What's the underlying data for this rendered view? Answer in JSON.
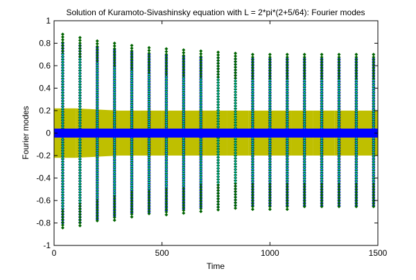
{
  "chart_data": {
    "type": "scatter",
    "title": "Solution of Kuramoto-Sivashinsky equation with L = 2*pi*(2+5/64): Fourier modes",
    "xlabel": "Time",
    "ylabel": "Fourier modes",
    "xlim": [
      0,
      1500
    ],
    "ylim": [
      -1,
      1
    ],
    "grid": false,
    "legend": false,
    "x_ticks": [
      0,
      500,
      1000,
      1500
    ],
    "x_tick_labels": [
      "0",
      "500",
      "1000",
      "1500"
    ],
    "y_ticks": [
      -1,
      -0.8,
      -0.6,
      -0.4,
      -0.2,
      0,
      0.2,
      0.4,
      0.6,
      0.8,
      1
    ],
    "y_tick_labels": [
      "-1",
      "-0.8",
      "-0.6",
      "-0.4",
      "-0.2",
      "0",
      "0.2",
      "0.4",
      "0.6",
      "0.8",
      "1"
    ],
    "series": [
      {
        "color": "#006400",
        "marker": "diamond",
        "x": [
          40,
          120,
          200,
          280,
          360,
          440,
          520,
          600,
          680,
          760,
          840,
          920,
          1000,
          1080,
          1160,
          1240,
          1320,
          1400,
          1480
        ],
        "y_max": [
          0.88,
          0.85,
          0.82,
          0.8,
          0.78,
          0.76,
          0.75,
          0.74,
          0.73,
          0.72,
          0.71,
          0.7,
          0.7,
          0.7,
          0.7,
          0.7,
          0.7,
          0.7,
          0.7
        ],
        "y_min": [
          -0.86,
          -0.83,
          -0.8,
          -0.78,
          -0.76,
          -0.74,
          -0.73,
          -0.72,
          -0.71,
          -0.7,
          -0.69,
          -0.68,
          -0.68,
          -0.68,
          -0.67,
          -0.67,
          -0.67,
          -0.67,
          -0.67
        ]
      },
      {
        "color": "#0000ff",
        "marker": "diamond",
        "x": [
          40,
          120,
          200,
          280,
          360,
          440,
          520,
          600,
          680,
          760,
          840,
          920,
          1000,
          1080,
          1160,
          1240,
          1320,
          1400,
          1480
        ],
        "y_max": [
          0.8,
          0.78,
          0.76,
          0.74,
          0.72,
          0.7,
          0.69,
          0.68,
          0.67,
          0.67,
          0.66,
          0.66,
          0.66,
          0.66,
          0.66,
          0.66,
          0.66,
          0.66,
          0.66
        ],
        "y_min": [
          -0.82,
          -0.8,
          -0.77,
          -0.75,
          -0.73,
          -0.71,
          -0.7,
          -0.69,
          -0.68,
          -0.67,
          -0.66,
          -0.66,
          -0.66,
          -0.66,
          -0.66,
          -0.66,
          -0.66,
          -0.66,
          -0.66
        ]
      },
      {
        "color": "#ff0000",
        "marker": "point",
        "x": [
          40,
          120,
          200,
          280,
          360,
          440,
          520,
          600,
          680,
          760,
          840,
          920,
          1000,
          1080,
          1160,
          1240,
          1320,
          1400,
          1480
        ],
        "y_max": [
          0.62,
          0.6,
          0.58,
          0.56,
          0.55,
          0.54,
          0.53,
          0.52,
          0.52,
          0.52,
          0.52,
          0.52,
          0.52,
          0.52,
          0.52,
          0.52,
          0.52,
          0.52,
          0.52
        ],
        "y_min": [
          -0.66,
          -0.63,
          -0.6,
          -0.58,
          -0.56,
          -0.54,
          -0.53,
          -0.52,
          -0.52,
          -0.52,
          -0.52,
          -0.52,
          -0.52,
          -0.52,
          -0.52,
          -0.52,
          -0.52,
          -0.52,
          -0.52
        ]
      },
      {
        "color": "#bf00bf",
        "marker": "point",
        "x": [
          40,
          120,
          200,
          280,
          360,
          440,
          520,
          600,
          680,
          760,
          840,
          920,
          1000,
          1080,
          1160,
          1240,
          1320,
          1400,
          1480
        ],
        "y_max": [
          0.35,
          0.33,
          0.32,
          0.3,
          0.29,
          0.28,
          0.27,
          0.27,
          0.26,
          0.26,
          0.26,
          0.26,
          0.26,
          0.26,
          0.26,
          0.26,
          0.26,
          0.26,
          0.26
        ],
        "y_min": [
          -0.35,
          -0.33,
          -0.32,
          -0.3,
          -0.29,
          -0.28,
          -0.27,
          -0.27,
          -0.26,
          -0.26,
          -0.26,
          -0.26,
          -0.26,
          -0.26,
          -0.26,
          -0.26,
          -0.26,
          -0.26,
          -0.26
        ]
      },
      {
        "color": "#00bfbf",
        "marker": "point",
        "x": [
          40,
          120,
          200,
          280,
          360,
          440,
          520,
          600,
          680,
          760,
          840,
          920,
          1000,
          1080,
          1160,
          1240,
          1320,
          1400,
          1480
        ],
        "y_max": [
          0.7,
          0.66,
          0.62,
          0.58,
          0.55,
          0.52,
          0.5,
          0.49,
          0.48,
          0.48,
          0.47,
          0.47,
          0.47,
          0.47,
          0.47,
          0.47,
          0.47,
          0.47,
          0.47
        ],
        "y_min": [
          -0.68,
          -0.62,
          -0.58,
          -0.55,
          -0.52,
          -0.5,
          -0.48,
          -0.47,
          -0.46,
          -0.46,
          -0.45,
          -0.45,
          -0.45,
          -0.45,
          -0.45,
          -0.45,
          -0.45,
          -0.45,
          -0.45
        ]
      },
      {
        "color": "#bfbf00",
        "marker": "point",
        "x": [
          0,
          100,
          200,
          300,
          400,
          500,
          600,
          700,
          800,
          900,
          1000,
          1100,
          1200,
          1300,
          1400,
          1500
        ],
        "y_max": [
          0.22,
          0.22,
          0.21,
          0.2,
          0.2,
          0.2,
          0.2,
          0.2,
          0.2,
          0.2,
          0.2,
          0.2,
          0.2,
          0.2,
          0.2,
          0.2
        ],
        "y_min": [
          -0.22,
          -0.22,
          -0.21,
          -0.2,
          -0.2,
          -0.2,
          -0.2,
          -0.2,
          -0.2,
          -0.2,
          -0.2,
          -0.2,
          -0.2,
          -0.2,
          -0.2,
          -0.2
        ]
      },
      {
        "color": "#000000",
        "marker": "point",
        "x": [
          0,
          1500
        ],
        "y_max": [
          0.01,
          0.01
        ],
        "y_min": [
          -0.01,
          -0.01
        ]
      },
      {
        "color": "#0000ff",
        "marker": "point",
        "x": [
          0,
          1500
        ],
        "y_max": [
          0.04,
          0.04
        ],
        "y_min": [
          -0.04,
          -0.04
        ]
      }
    ]
  }
}
